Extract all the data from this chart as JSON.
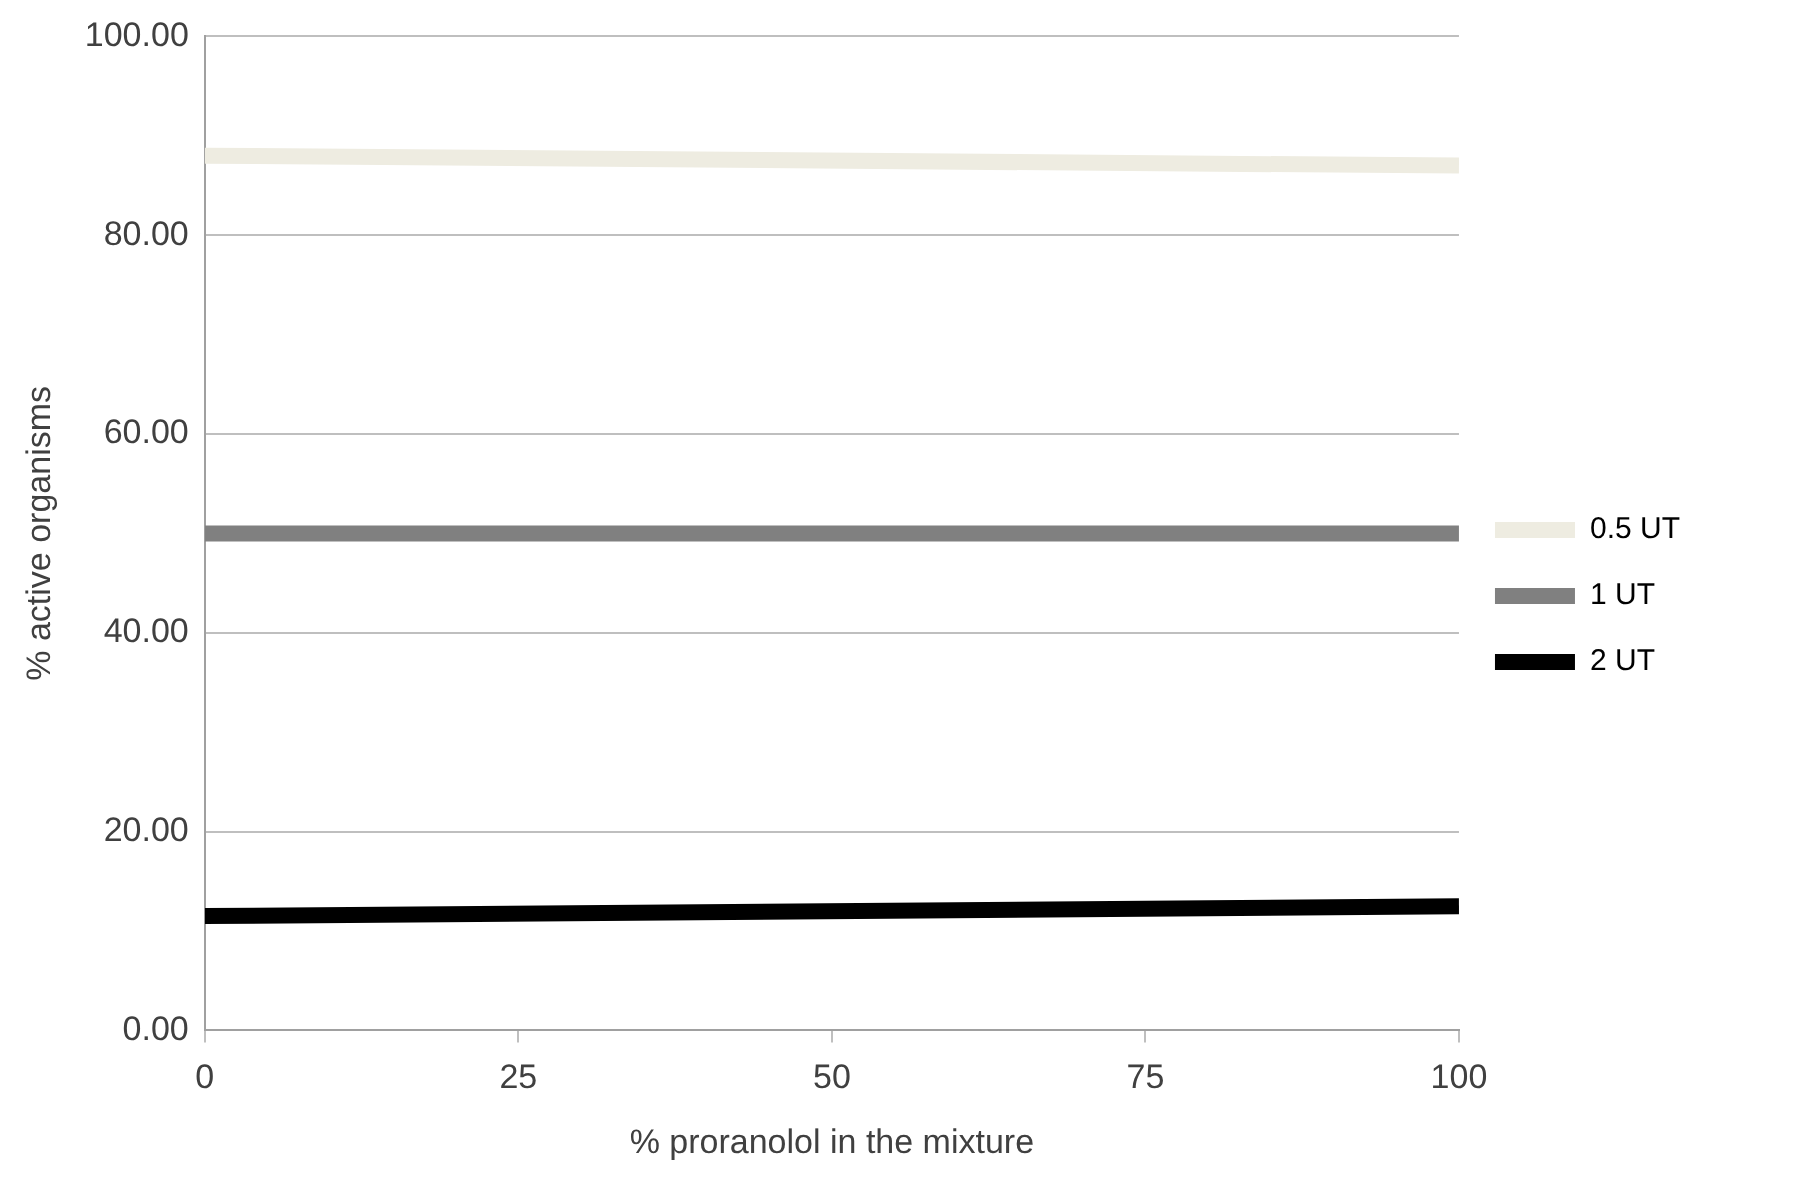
{
  "chart_data": {
    "type": "line",
    "xlabel": "% proranolol in the mixture",
    "ylabel": "% active organisms",
    "x": [
      0,
      100
    ],
    "series": [
      {
        "name": "0.5 UT",
        "color": "#eeece1",
        "values": [
          88,
          87
        ]
      },
      {
        "name": "1 UT",
        "color": "#808080",
        "values": [
          50,
          50
        ]
      },
      {
        "name": "2 UT",
        "color": "#000000",
        "values": [
          11.5,
          12.5
        ]
      }
    ],
    "xlim": [
      0,
      100
    ],
    "xticks": [
      0,
      25,
      50,
      75,
      100
    ],
    "ylim": [
      0,
      100
    ],
    "yticks": [
      {
        "value": 0,
        "label": "0.00"
      },
      {
        "value": 20,
        "label": "20.00"
      },
      {
        "value": 40,
        "label": "40.00"
      },
      {
        "value": 60,
        "label": "60.00"
      },
      {
        "value": 80,
        "label": "80.00"
      },
      {
        "value": 100,
        "label": "100.00"
      }
    ],
    "grid": "y",
    "legend": "right",
    "marker": "none",
    "line_style": "solid"
  }
}
